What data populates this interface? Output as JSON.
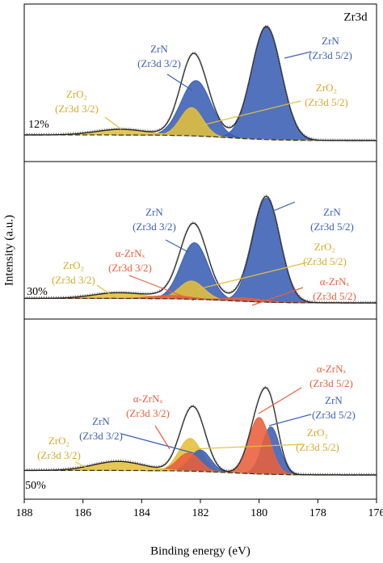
{
  "chart_data": {
    "type": "xps-stack",
    "title": "Zr3d",
    "x_label": "Binding energy (eV)",
    "y_label": "Intensity (a.u.)",
    "xlim": [
      188,
      176
    ],
    "xticks": [
      188,
      186,
      184,
      182,
      180,
      178,
      176
    ],
    "ylim": [
      0,
      100
    ],
    "panels": [
      {
        "label": "12%",
        "background": [
          5,
          0
        ],
        "peaks": [
          {
            "name": "ZrN",
            "sublabel": "(Zr3d 5/2)",
            "color": "#3a5fb5",
            "center": 179.75,
            "fwhm": 1.2,
            "height": 100
          },
          {
            "name": "ZrN",
            "sublabel": "(Zr3d 3/2)",
            "color": "#3a5fb5",
            "center": 182.15,
            "fwhm": 1.2,
            "height": 49
          },
          {
            "name": "ZrO₂",
            "sublabel": "(Zr3d 5/2)",
            "color": "#e3bf3c",
            "center": 182.3,
            "fwhm": 0.9,
            "height": 25
          },
          {
            "name": "ZrO₂",
            "sublabel": "(Zr3d 3/2)",
            "color": "#e3bf3c",
            "center": 184.7,
            "fwhm": 2,
            "height": 5
          }
        ]
      },
      {
        "label": "30%",
        "background": [
          4,
          0
        ],
        "peaks": [
          {
            "name": "ZrN",
            "sublabel": "(Zr3d 5/2)",
            "color": "#3a5fb5",
            "center": 179.75,
            "fwhm": 1.1,
            "height": 92
          },
          {
            "name": "ZrN",
            "sublabel": "(Zr3d 3/2)",
            "color": "#3a5fb5",
            "center": 182.2,
            "fwhm": 1.1,
            "height": 50
          },
          {
            "name": "ZrO₂",
            "sublabel": "(Zr3d 5/2)",
            "color": "#e3bf3c",
            "center": 182.3,
            "fwhm": 1,
            "height": 16
          },
          {
            "name": "ZrO₂",
            "sublabel": "(Zr3d 3/2)",
            "color": "#e3bf3c",
            "center": 184.8,
            "fwhm": 2,
            "height": 5
          },
          {
            "name": "α-ZrNₓ",
            "sublabel": "(Zr3d 3/2)",
            "color": "#e8603c",
            "center": 183,
            "fwhm": 1.5,
            "height": 3
          },
          {
            "name": "α-ZrNₓ",
            "sublabel": "(Zr3d 5/2)",
            "color": "#e8603c",
            "center": 180.5,
            "fwhm": 1.5,
            "height": 3
          }
        ]
      },
      {
        "label": "50%",
        "background": [
          4,
          0
        ],
        "peaks": [
          {
            "name": "ZrN",
            "sublabel": "(Zr3d 5/2)",
            "color": "#3a5fb5",
            "center": 179.6,
            "fwhm": 0.7,
            "height": 42
          },
          {
            "name": "α-ZrNₓ",
            "sublabel": "(Zr3d 5/2)",
            "color": "#e8603c",
            "center": 180,
            "fwhm": 0.85,
            "height": 50
          },
          {
            "name": "ZrO₂",
            "sublabel": "(Zr3d 5/2)",
            "color": "#e3bf3c",
            "center": 182.35,
            "fwhm": 0.9,
            "height": 29
          },
          {
            "name": "ZrN",
            "sublabel": "(Zr3d 3/2)",
            "color": "#3a5fb5",
            "center": 182,
            "fwhm": 0.8,
            "height": 19
          },
          {
            "name": "α-ZrNₓ",
            "sublabel": "(Zr3d 3/2)",
            "color": "#e8603c",
            "center": 182.4,
            "fwhm": 0.9,
            "height": 16
          },
          {
            "name": "ZrO₂",
            "sublabel": "(Zr3d 3/2)",
            "color": "#e3bf3c",
            "center": 184.8,
            "fwhm": 2,
            "height": 8
          }
        ]
      }
    ]
  }
}
